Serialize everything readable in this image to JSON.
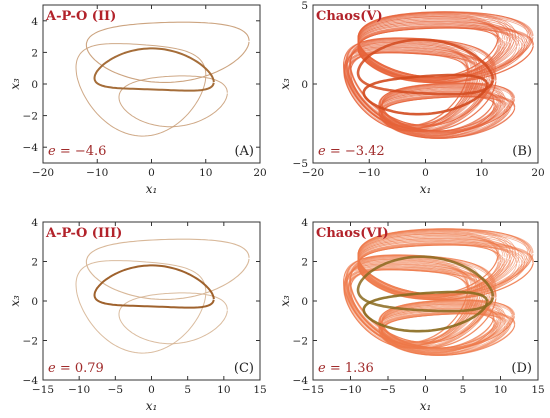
{
  "chart_data": [
    {
      "type": "line",
      "title": "A-P-O (II)",
      "annotation": "e = −4.6",
      "panel_label": "(A)",
      "xlabel": "x1",
      "ylabel": "x3",
      "xlim": [
        -20,
        20
      ],
      "ylim": [
        -5,
        5
      ],
      "xticks": [
        "−20",
        "−10",
        "0",
        "10",
        "20"
      ],
      "yticks": [
        "−4",
        "−2",
        "0",
        "2",
        "4"
      ],
      "series_color": "#c79a72",
      "dominant_color": "#a0652e",
      "style": "attractor-periodic"
    },
    {
      "type": "line",
      "title": "Chaos(V)",
      "annotation": "e = −3.42",
      "panel_label": "(B)",
      "xlabel": "x1",
      "ylabel": "x3",
      "xlim": [
        -20,
        20
      ],
      "ylim": [
        -5,
        5
      ],
      "xticks": [
        "−20",
        "−10",
        "0",
        "10",
        "20"
      ],
      "yticks": [
        "−5",
        "0",
        "5"
      ],
      "series_color": "#e8643a",
      "dominant_color": "#d24a1e",
      "style": "attractor-chaotic"
    },
    {
      "type": "line",
      "title": "A-P-O (III)",
      "annotation": "e = 0.79",
      "panel_label": "(C)",
      "xlabel": "x1",
      "ylabel": "x3",
      "xlim": [
        -15,
        15
      ],
      "ylim": [
        -4,
        4
      ],
      "xticks": [
        "−15",
        "−10",
        "−5",
        "0",
        "5",
        "10",
        "15"
      ],
      "yticks": [
        "−4",
        "−2",
        "0",
        "2",
        "4"
      ],
      "series_color": "#d4b08e",
      "dominant_color": "#9a5a22",
      "style": "attractor-periodic"
    },
    {
      "type": "line",
      "title": "Chaos(VI)",
      "annotation": "e = 1.36",
      "panel_label": "(D)",
      "xlabel": "x1",
      "ylabel": "x3",
      "xlim": [
        -15,
        15
      ],
      "ylim": [
        -4,
        4
      ],
      "xticks": [
        "−15",
        "−10",
        "−5",
        "0",
        "5",
        "10",
        "15"
      ],
      "yticks": [
        "−4",
        "−2",
        "0",
        "2",
        "4"
      ],
      "series_color": "#ef7a4a",
      "dominant_color": "#8a6a1e",
      "style": "attractor-chaotic"
    }
  ]
}
